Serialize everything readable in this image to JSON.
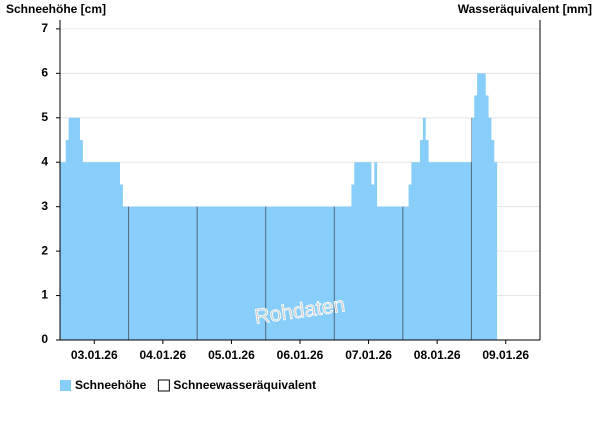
{
  "chart_data": {
    "type": "step-area",
    "y_label": "Schneehöhe [cm]",
    "y2_label": "Wasseräquivalent [mm]",
    "watermark": "Rohdaten",
    "x": [
      0,
      2,
      3,
      7,
      8,
      21,
      22,
      102,
      103,
      109,
      110,
      111,
      122,
      123,
      126,
      127,
      128,
      129,
      144,
      145,
      146,
      149,
      150,
      151,
      152,
      153
    ],
    "xlim": [
      0,
      168
    ],
    "xticks": [
      {
        "value": 12,
        "label": "03.01.26"
      },
      {
        "value": 36,
        "label": "04.01.26"
      },
      {
        "value": 60,
        "label": "05.01.26"
      },
      {
        "value": 84,
        "label": "06.01.26"
      },
      {
        "value": 108,
        "label": "07.01.26"
      },
      {
        "value": 132,
        "label": "08.01.26"
      },
      {
        "value": 156,
        "label": "09.01.26"
      }
    ],
    "ylim": [
      0,
      7.2
    ],
    "yticks": [
      0,
      1,
      2,
      3,
      4,
      5,
      6,
      7
    ],
    "grid": true,
    "series": [
      {
        "name": "Schneehöhe",
        "color": "#87cefa",
        "values": [
          4,
          4.5,
          5,
          4.5,
          4,
          3.5,
          3,
          3.5,
          4,
          3.5,
          4,
          3,
          3.5,
          4,
          4.5,
          5,
          4.5,
          4,
          5,
          5.5,
          6,
          5.5,
          5,
          4.5,
          4,
          4
        ]
      },
      {
        "name": "Schneewasseräquivalent",
        "color": "#ffffff"
      }
    ]
  }
}
